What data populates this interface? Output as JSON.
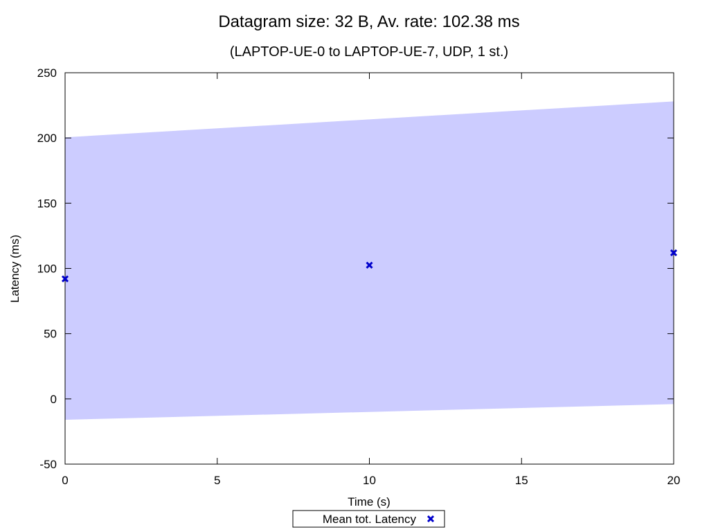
{
  "chart_data": {
    "type": "scatter",
    "title": "Datagram size: 32 B, Av. rate: 102.38 ms",
    "subtitle": "(LAPTOP-UE-0 to LAPTOP-UE-7, UDP, 1 st.)",
    "xlabel": "Time (s)",
    "ylabel": "Latency (ms)",
    "xlim": [
      0,
      20
    ],
    "ylim": [
      -50,
      250
    ],
    "xticks": [
      0,
      5,
      10,
      15,
      20
    ],
    "yticks": [
      -50,
      0,
      50,
      100,
      150,
      200,
      250
    ],
    "grid": false,
    "legend_position": "bottom-center",
    "band": {
      "x": [
        0,
        20
      ],
      "upper": [
        200.5,
        228
      ],
      "lower": [
        -16,
        -4
      ],
      "color": "#ccccff"
    },
    "series": [
      {
        "name": "Mean tot. Latency",
        "marker": "x",
        "color": "#0000cc",
        "x": [
          0,
          10,
          20
        ],
        "y": [
          92,
          102.5,
          112
        ]
      }
    ]
  }
}
